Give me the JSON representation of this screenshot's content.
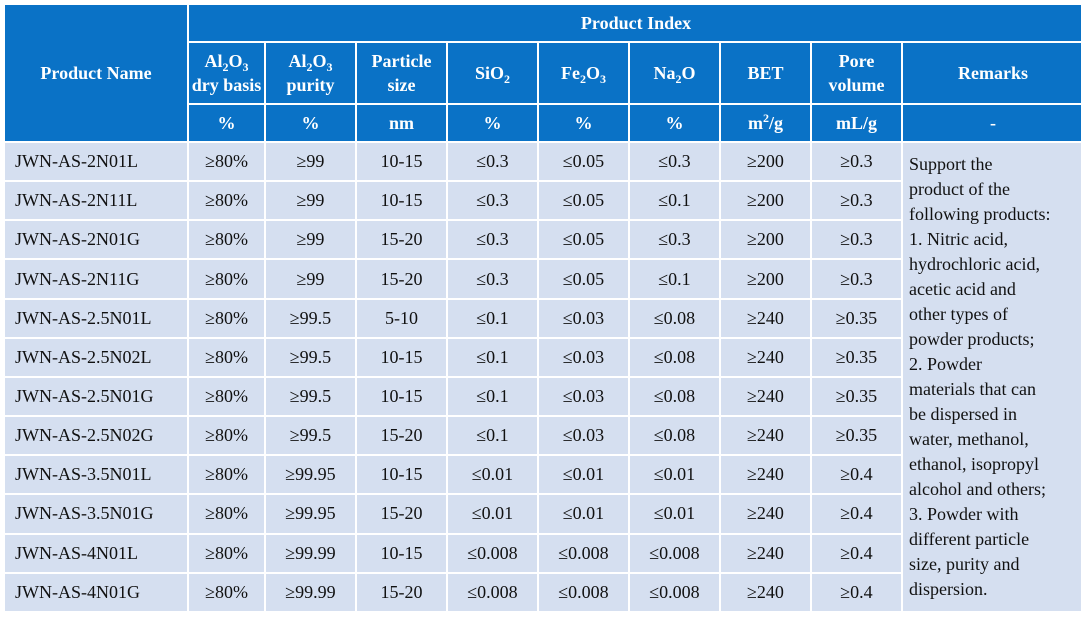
{
  "table": {
    "product_name_header": "Product Name",
    "product_index_header": "Product Index",
    "columns": [
      {
        "line1": [
          {
            "t": "Al"
          },
          {
            "sub": "2"
          },
          {
            "t": "O"
          },
          {
            "sub": "3"
          }
        ],
        "line2": "dry basis",
        "unit": [
          {
            "t": "%"
          }
        ]
      },
      {
        "line1": [
          {
            "t": "Al"
          },
          {
            "sub": "2"
          },
          {
            "t": "O"
          },
          {
            "sub": "3"
          }
        ],
        "line2": "purity",
        "unit": [
          {
            "t": "%"
          }
        ]
      },
      {
        "line1": [
          {
            "t": "Particle"
          }
        ],
        "line2": "size",
        "unit": [
          {
            "t": "nm"
          }
        ]
      },
      {
        "line1": [
          {
            "t": "SiO"
          },
          {
            "sub": "2"
          }
        ],
        "line2": "",
        "unit": [
          {
            "t": "%"
          }
        ]
      },
      {
        "line1": [
          {
            "t": "Fe"
          },
          {
            "sub": "2"
          },
          {
            "t": "O"
          },
          {
            "sub": "3"
          }
        ],
        "line2": "",
        "unit": [
          {
            "t": "%"
          }
        ]
      },
      {
        "line1": [
          {
            "t": "Na"
          },
          {
            "sub": "2"
          },
          {
            "t": "O"
          }
        ],
        "line2": "",
        "unit": [
          {
            "t": "%"
          }
        ]
      },
      {
        "line1": [
          {
            "t": "BET"
          }
        ],
        "line2": "",
        "unit": [
          {
            "t": "m"
          },
          {
            "sup": "2"
          },
          {
            "t": "/g"
          }
        ]
      },
      {
        "line1": [
          {
            "t": "Pore"
          }
        ],
        "line2": "volume",
        "unit": [
          {
            "t": "mL/g"
          }
        ]
      }
    ],
    "remarks_header": "Remarks",
    "remarks_unit": "-",
    "rows": [
      {
        "name": "JWN-AS-2N01L",
        "cells": [
          "≥80%",
          "≥99",
          "10-15",
          "≤0.3",
          "≤0.05",
          "≤0.3",
          "≥200",
          "≥0.3"
        ]
      },
      {
        "name": "JWN-AS-2N11L",
        "cells": [
          "≥80%",
          "≥99",
          "10-15",
          "≤0.3",
          "≤0.05",
          "≤0.1",
          "≥200",
          "≥0.3"
        ]
      },
      {
        "name": "JWN-AS-2N01G",
        "cells": [
          "≥80%",
          "≥99",
          "15-20",
          "≤0.3",
          "≤0.05",
          "≤0.3",
          "≥200",
          "≥0.3"
        ]
      },
      {
        "name": "JWN-AS-2N11G",
        "cells": [
          "≥80%",
          "≥99",
          "15-20",
          "≤0.3",
          "≤0.05",
          "≤0.1",
          "≥200",
          "≥0.3"
        ]
      },
      {
        "name": "JWN-AS-2.5N01L",
        "cells": [
          "≥80%",
          "≥99.5",
          "5-10",
          "≤0.1",
          "≤0.03",
          "≤0.08",
          "≥240",
          "≥0.35"
        ]
      },
      {
        "name": "JWN-AS-2.5N02L",
        "cells": [
          "≥80%",
          "≥99.5",
          "10-15",
          "≤0.1",
          "≤0.03",
          "≤0.08",
          "≥240",
          "≥0.35"
        ]
      },
      {
        "name": "JWN-AS-2.5N01G",
        "cells": [
          "≥80%",
          "≥99.5",
          "10-15",
          "≤0.1",
          "≤0.03",
          "≤0.08",
          "≥240",
          "≥0.35"
        ]
      },
      {
        "name": "JWN-AS-2.5N02G",
        "cells": [
          "≥80%",
          "≥99.5",
          "15-20",
          "≤0.1",
          "≤0.03",
          "≤0.08",
          "≥240",
          "≥0.35"
        ]
      },
      {
        "name": "JWN-AS-3.5N01L",
        "cells": [
          "≥80%",
          "≥99.95",
          "10-15",
          "≤0.01",
          "≤0.01",
          "≤0.01",
          "≥240",
          "≥0.4"
        ]
      },
      {
        "name": "JWN-AS-3.5N01G",
        "cells": [
          "≥80%",
          "≥99.95",
          "15-20",
          "≤0.01",
          "≤0.01",
          "≤0.01",
          "≥240",
          "≥0.4"
        ]
      },
      {
        "name": "JWN-AS-4N01L",
        "cells": [
          "≥80%",
          "≥99.99",
          "10-15",
          "≤0.008",
          "≤0.008",
          "≤0.008",
          "≥240",
          "≥0.4"
        ]
      },
      {
        "name": "JWN-AS-4N01G",
        "cells": [
          "≥80%",
          "≥99.99",
          "15-20",
          "≤0.008",
          "≤0.008",
          "≤0.008",
          "≥240",
          "≥0.4"
        ]
      }
    ],
    "remarks_lines": [
      "Support the",
      "product of the",
      "following products:",
      "1. Nitric acid,",
      "hydrochloric acid,",
      "acetic acid and",
      "other types of",
      "powder products;",
      "2. Powder",
      "materials that can",
      "be dispersed in",
      "water, methanol,",
      "ethanol, isopropyl",
      "alcohol and others;",
      "3. Powder with",
      "different particle",
      "size, purity and",
      "dispersion."
    ]
  }
}
